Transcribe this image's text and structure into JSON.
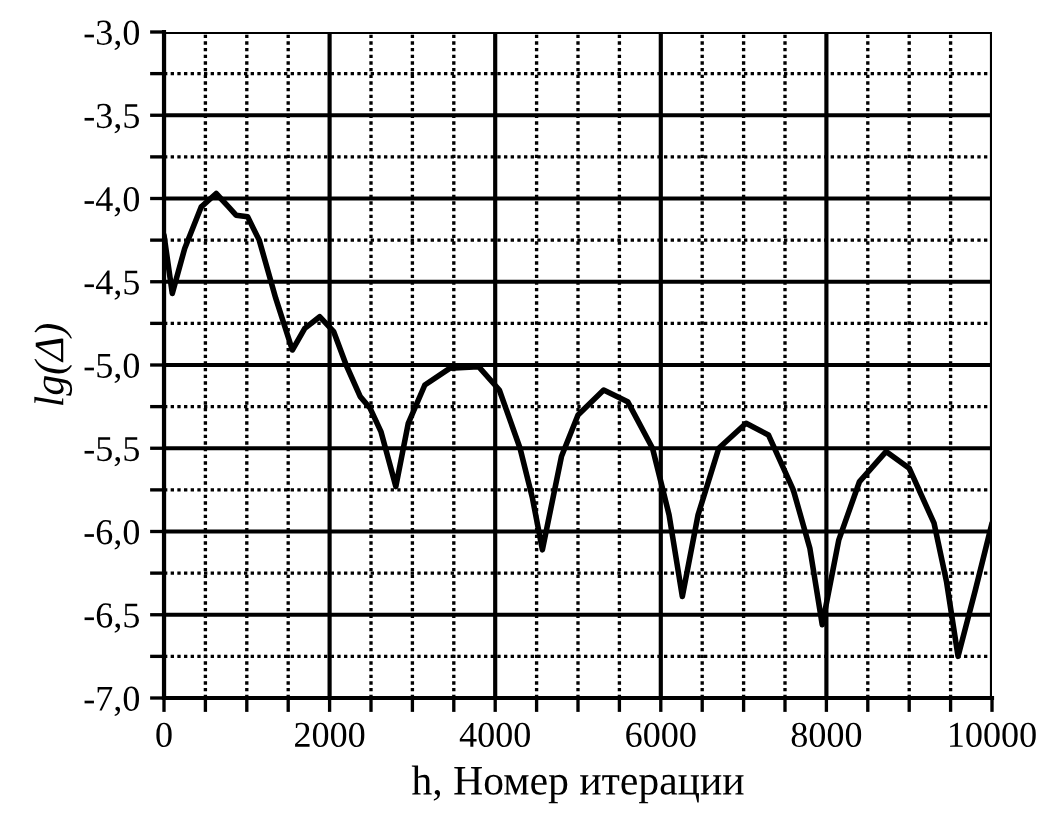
{
  "chart_data": {
    "type": "line",
    "xlabel": "h, Номер итерации",
    "ylabel": "lg(Δ)",
    "grid": true,
    "marker": "none",
    "line_style": "solid",
    "xlim": [
      0,
      10000
    ],
    "ylim": [
      -7,
      -3
    ],
    "xticks": [
      0,
      {
        "value": 500,
        "label": null
      },
      {
        "value": 1000,
        "label": null
      },
      {
        "value": 1500,
        "label": null
      },
      2000,
      {
        "value": 2500,
        "label": null
      },
      {
        "value": 3000,
        "label": null
      },
      {
        "value": 3500,
        "label": null
      },
      4000,
      {
        "value": 4500,
        "label": null
      },
      {
        "value": 5000,
        "label": null
      },
      {
        "value": 5500,
        "label": null
      },
      6000,
      {
        "value": 6500,
        "label": null
      },
      {
        "value": 7000,
        "label": null
      },
      {
        "value": 7500,
        "label": null
      },
      8000,
      {
        "value": 8500,
        "label": null
      },
      {
        "value": 9000,
        "label": null
      },
      {
        "value": 9500,
        "label": null
      },
      10000
    ],
    "yticks": [
      {
        "value": -7,
        "label": "-7,0"
      },
      {
        "value": -6.75,
        "label": null
      },
      {
        "value": -6.5,
        "label": "-6,5"
      },
      {
        "value": -6.25,
        "label": null
      },
      {
        "value": -6,
        "label": "-6,0"
      },
      {
        "value": -5.75,
        "label": null
      },
      {
        "value": -5.5,
        "label": "-5,5"
      },
      {
        "value": -5.25,
        "label": null
      },
      {
        "value": -5,
        "label": "-5,0"
      },
      {
        "value": -4.75,
        "label": null
      },
      {
        "value": -4.5,
        "label": "-4,5"
      },
      {
        "value": -4.25,
        "label": null
      },
      {
        "value": -4,
        "label": "-4,0"
      },
      {
        "value": -3.75,
        "label": null
      },
      {
        "value": -3.5,
        "label": "-3,5"
      },
      {
        "value": -3.25,
        "label": null
      },
      {
        "value": -3,
        "label": "-3,0"
      }
    ],
    "series": [
      {
        "color": "#000000",
        "x": [
          0,
          100,
          250,
          450,
          630,
          780,
          870,
          1010,
          1150,
          1350,
          1550,
          1700,
          1880,
          2050,
          2200,
          2370,
          2490,
          2620,
          2800,
          2950,
          3150,
          3450,
          3800,
          4050,
          4300,
          4450,
          4570,
          4800,
          5000,
          5310,
          5600,
          5900,
          6100,
          6260,
          6450,
          6700,
          7030,
          7300,
          7600,
          7800,
          7950,
          8150,
          8400,
          8720,
          9000,
          9300,
          9450,
          9590,
          9800,
          10000
        ],
        "values": [
          -4.22,
          -4.57,
          -4.3,
          -4.05,
          -3.97,
          -4.05,
          -4.1,
          -4.11,
          -4.25,
          -4.6,
          -4.91,
          -4.78,
          -4.71,
          -4.8,
          -5.0,
          -5.19,
          -5.26,
          -5.4,
          -5.73,
          -5.35,
          -5.12,
          -5.02,
          -5.01,
          -5.15,
          -5.5,
          -5.8,
          -6.11,
          -5.55,
          -5.3,
          -5.15,
          -5.22,
          -5.5,
          -5.9,
          -6.39,
          -5.9,
          -5.5,
          -5.35,
          -5.42,
          -5.75,
          -6.1,
          -6.56,
          -6.05,
          -5.7,
          -5.52,
          -5.62,
          -5.95,
          -6.3,
          -6.75,
          -6.35,
          -5.95
        ]
      }
    ]
  }
}
